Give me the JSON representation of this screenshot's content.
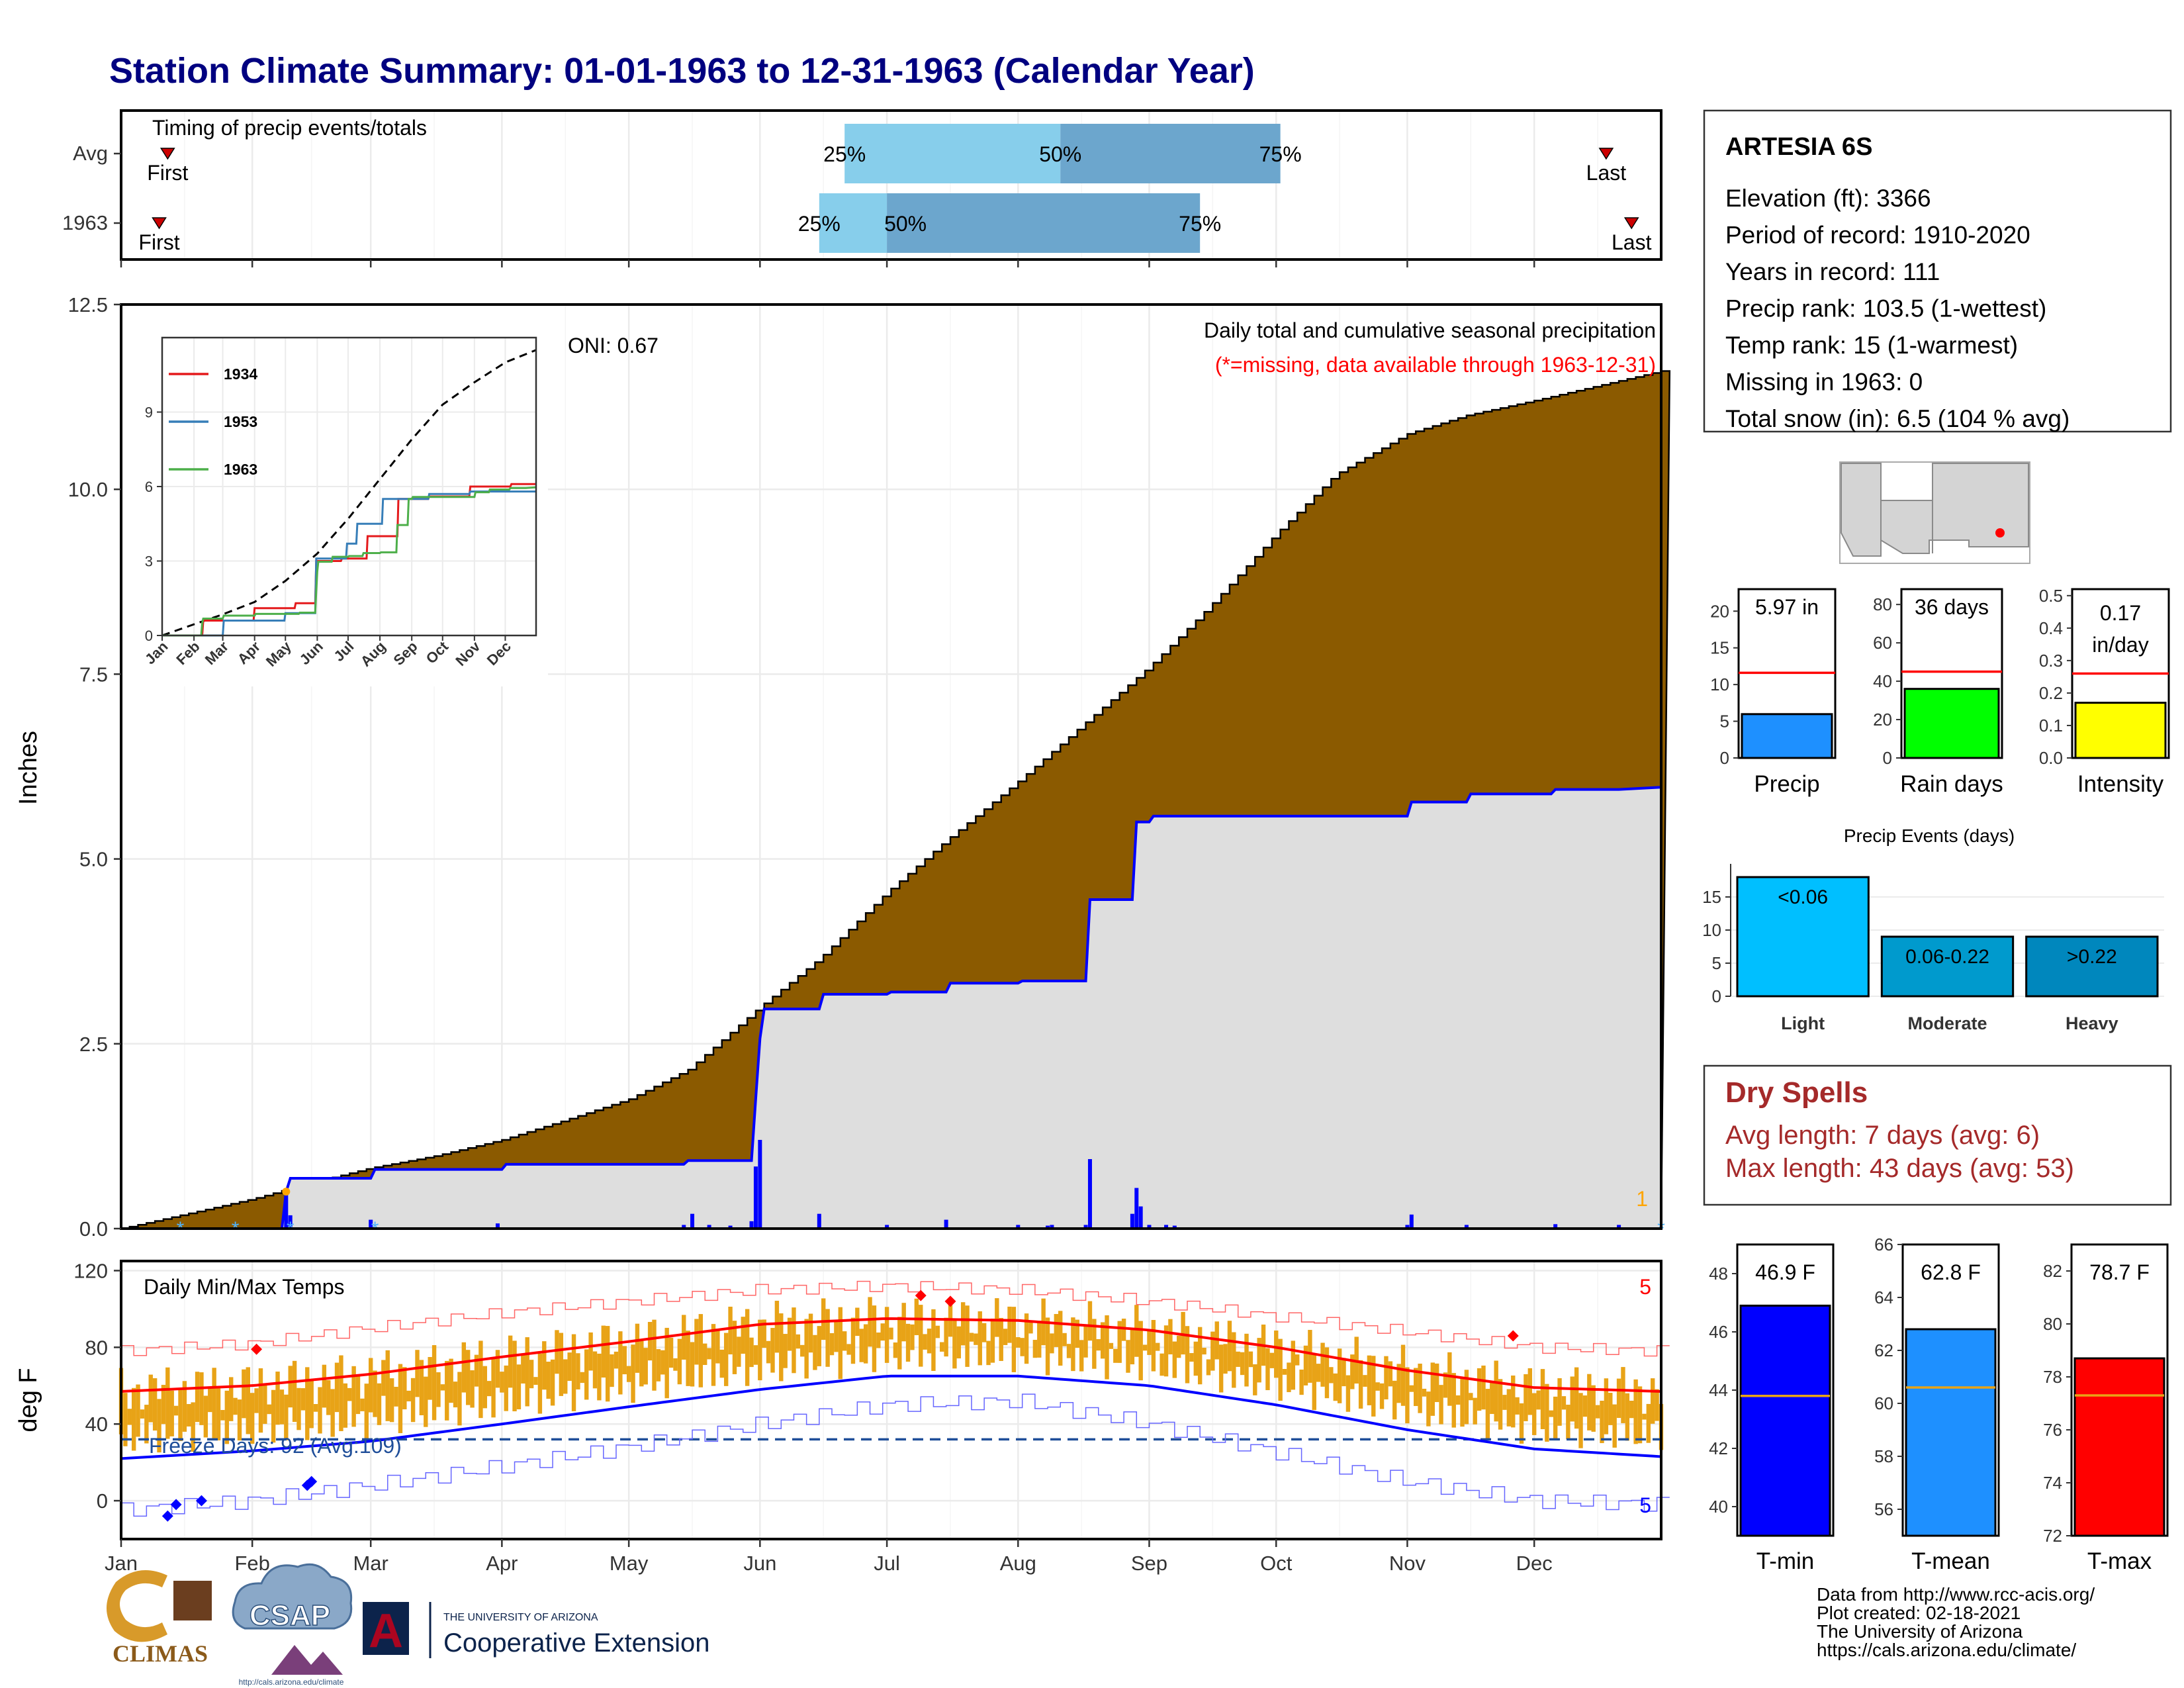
{
  "title": "Station Climate Summary: 01-01-1963 to 12-31-1963 (Calendar Year)",
  "months": [
    "Jan",
    "Feb",
    "Mar",
    "Apr",
    "May",
    "Jun",
    "Jul",
    "Aug",
    "Sep",
    "Oct",
    "Nov",
    "Dec"
  ],
  "timing": {
    "title": "Timing of precip events/totals",
    "rows": [
      {
        "label": "Avg",
        "first_day": 12,
        "p25_day": 172,
        "p50_day": 223,
        "p75_day": 275,
        "last_day": 352,
        "first_label": "First",
        "last_label": "Last",
        "p25_label": "25%",
        "p50_label": "50%",
        "p75_label": "75%"
      },
      {
        "label": "1963",
        "first_day": 10,
        "p25_day": 166,
        "p50_day": 182,
        "p75_day": 256,
        "last_day": 358,
        "first_label": "First",
        "last_label": "Last",
        "p25_label": "25%",
        "p50_label": "50%",
        "p75_label": "75%"
      }
    ]
  },
  "station": {
    "name": "ARTESIA 6S",
    "lines": [
      "Elevation (ft): 3366",
      "Period of record: 1910-2020",
      "Years in record: 111",
      "Precip rank: 103.5 (1-wettest)",
      "Temp rank: 15 (1-warmest)",
      "Missing in 1963: 0",
      "Total snow (in): 6.5 (104 % avg)"
    ]
  },
  "precip_panel": {
    "ylabel": "Inches",
    "y_ticks": [
      "0.0",
      "2.5",
      "5.0",
      "7.5",
      "10.0",
      "12.5"
    ],
    "oni": "ONI: 0.67",
    "caption": "Daily total and cumulative seasonal precipitation",
    "missing_note": "(*=missing, data available through 1963-12-31)",
    "corner_label": "1",
    "colors": {
      "avg_fill": "#8b5a00",
      "year_fill": "#dedede",
      "year_line": "#0000ff"
    }
  },
  "chart_data": [
    {
      "type": "area",
      "title": "Daily total and cumulative seasonal precipitation",
      "ylabel": "Inches",
      "ylim": [
        0,
        12.5
      ],
      "series": [
        {
          "name": "Average cumulative",
          "x": [
            1,
            15,
            32,
            46,
            60,
            75,
            91,
            105,
            121,
            135,
            152,
            166,
            182,
            196,
            213,
            227,
            244,
            258,
            274,
            288,
            305,
            319,
            335,
            350,
            365
          ],
          "y": [
            0,
            0.18,
            0.4,
            0.62,
            0.82,
            0.98,
            1.2,
            1.45,
            1.75,
            2.15,
            3.0,
            3.65,
            4.55,
            5.25,
            6.05,
            6.75,
            7.6,
            8.4,
            9.4,
            10.2,
            10.75,
            11.0,
            11.2,
            11.4,
            11.6
          ]
        },
        {
          "name": "1963 cumulative",
          "x": [
            1,
            39,
            40,
            41,
            60,
            61,
            91,
            92,
            134,
            135,
            150,
            151,
            152,
            153,
            166,
            167,
            182,
            183,
            196,
            197,
            213,
            214,
            229,
            230,
            240,
            241,
            244,
            245,
            305,
            306,
            319,
            320,
            339,
            340,
            355,
            365
          ],
          "y": [
            0,
            0,
            0.5,
            0.68,
            0.68,
            0.8,
            0.8,
            0.87,
            0.87,
            0.92,
            0.92,
            1.76,
            2.57,
            2.97,
            2.97,
            3.17,
            3.17,
            3.2,
            3.2,
            3.32,
            3.32,
            3.35,
            3.35,
            4.45,
            4.45,
            5.5,
            5.5,
            5.58,
            5.58,
            5.77,
            5.77,
            5.88,
            5.88,
            5.94,
            5.94,
            5.97
          ]
        },
        {
          "name": "1963 daily",
          "x": [
            40,
            41,
            60,
            90,
            134,
            136,
            140,
            145,
            150,
            151,
            152,
            166,
            182,
            196,
            213,
            220,
            221,
            229,
            230,
            240,
            241,
            242,
            244,
            248,
            250,
            305,
            306,
            319,
            340,
            355
          ],
          "y": [
            0.5,
            0.18,
            0.12,
            0.07,
            0.05,
            0.2,
            0.05,
            0.04,
            0.1,
            0.84,
            1.2,
            0.2,
            0.05,
            0.12,
            0.05,
            0.04,
            0.05,
            0.05,
            0.94,
            0.2,
            0.55,
            0.3,
            0.05,
            0.05,
            0.04,
            0.05,
            0.19,
            0.05,
            0.06,
            0.05
          ]
        }
      ]
    },
    {
      "type": "line",
      "legend": [
        "1934",
        "1953",
        "1963"
      ],
      "x_ticks": [
        "Jan",
        "Feb",
        "Mar",
        "Apr",
        "May",
        "Jun",
        "Jul",
        "Aug",
        "Sep",
        "Oct",
        "Nov",
        "Dec"
      ],
      "y_ticks": [
        "0",
        "3",
        "6",
        "9"
      ],
      "ylim": [
        0,
        12
      ],
      "series": [
        {
          "name": "avg",
          "style": "dashed",
          "color": "#000000",
          "x": [
            1,
            32,
            60,
            91,
            121,
            152,
            182,
            213,
            244,
            274,
            305,
            335,
            365
          ],
          "y": [
            0,
            0.45,
            0.85,
            1.35,
            2.2,
            3.3,
            4.7,
            6.3,
            7.9,
            9.3,
            10.2,
            11.0,
            11.5
          ]
        },
        {
          "name": "1934",
          "color": "#e41a1c",
          "x": [
            1,
            40,
            41,
            90,
            91,
            130,
            131,
            150,
            151,
            175,
            176,
            200,
            201,
            230,
            231,
            260,
            261,
            300,
            301,
            340,
            341,
            365
          ],
          "y": [
            0,
            0,
            0.6,
            0.6,
            1.1,
            1.1,
            1.3,
            1.3,
            3.0,
            3.0,
            3.1,
            3.1,
            4.0,
            4.0,
            5.5,
            5.5,
            5.6,
            5.6,
            6.0,
            6.0,
            6.1,
            6.1
          ]
        },
        {
          "name": "1953",
          "color": "#377eb8",
          "x": [
            1,
            60,
            61,
            120,
            121,
            150,
            151,
            180,
            181,
            190,
            191,
            215,
            216,
            260,
            261,
            300,
            301,
            365
          ],
          "y": [
            0,
            0,
            0.6,
            0.6,
            0.9,
            0.9,
            3.1,
            3.1,
            3.7,
            3.7,
            4.5,
            4.5,
            5.5,
            5.5,
            5.7,
            5.7,
            5.8,
            5.8
          ]
        },
        {
          "name": "1963",
          "color": "#4daf4a",
          "x": [
            1,
            39,
            40,
            41,
            60,
            61,
            91,
            92,
            134,
            135,
            150,
            151,
            152,
            153,
            166,
            167,
            182,
            183,
            196,
            197,
            213,
            214,
            229,
            230,
            240,
            241,
            244,
            245,
            305,
            306,
            319,
            320,
            339,
            340,
            355,
            365
          ],
          "y": [
            0,
            0,
            0.5,
            0.68,
            0.68,
            0.8,
            0.8,
            0.87,
            0.87,
            0.92,
            0.92,
            1.76,
            2.57,
            2.97,
            2.97,
            3.17,
            3.17,
            3.2,
            3.2,
            3.32,
            3.32,
            3.35,
            3.35,
            4.45,
            4.45,
            5.5,
            5.5,
            5.58,
            5.58,
            5.77,
            5.77,
            5.88,
            5.88,
            5.94,
            5.94,
            5.97
          ]
        }
      ]
    },
    {
      "type": "bar",
      "title": "",
      "categories": [
        "Precip",
        "Rain days",
        "Intensity"
      ],
      "values": [
        5.97,
        36,
        0.17
      ],
      "labels": [
        "5.97 in",
        "36 days",
        "0.17 in/day"
      ],
      "averages": [
        11.6,
        45,
        0.26
      ],
      "ylims": [
        [
          0,
          23
        ],
        [
          0,
          88
        ],
        [
          0,
          0.52
        ]
      ],
      "y_ticks": [
        [
          "0",
          "5",
          "10",
          "15",
          "20"
        ],
        [
          "0",
          "20",
          "40",
          "60",
          "80"
        ],
        [
          "0.0",
          "0.1",
          "0.2",
          "0.3",
          "0.4",
          "0.5"
        ]
      ],
      "colors": [
        "#1e90ff",
        "#00ff00",
        "#ffff00"
      ]
    },
    {
      "type": "bar",
      "title": "Precip Events (days)",
      "categories": [
        "Light",
        "Moderate",
        "Heavy"
      ],
      "values": [
        18,
        9,
        9
      ],
      "labels": [
        "<0.06",
        "0.06-0.22",
        ">0.22"
      ],
      "y_ticks": [
        "0",
        "5",
        "10",
        "15"
      ],
      "ylim": [
        0,
        20
      ],
      "colors": [
        "#00bfff",
        "#009acd",
        "#0087bd"
      ]
    },
    {
      "type": "line",
      "title": "Daily Min/Max Temps",
      "ylabel": "deg F",
      "y_ticks": [
        "0",
        "40",
        "80",
        "120"
      ],
      "ylim": [
        -20,
        125
      ],
      "freeze_line": 32,
      "series": [
        {
          "name": "avg max",
          "color": "#ff0000",
          "x": [
            1,
            32,
            60,
            91,
            121,
            152,
            182,
            213,
            244,
            274,
            305,
            335,
            365
          ],
          "y": [
            57,
            60,
            66,
            75,
            83,
            92,
            95,
            94,
            89,
            80,
            68,
            59,
            57
          ]
        },
        {
          "name": "avg min",
          "color": "#0000ff",
          "x": [
            1,
            32,
            60,
            91,
            121,
            152,
            182,
            213,
            244,
            274,
            305,
            335,
            365
          ],
          "y": [
            22,
            26,
            31,
            40,
            49,
            58,
            65,
            65,
            60,
            50,
            37,
            27,
            23
          ]
        },
        {
          "name": "record max",
          "color": "#ff6666",
          "x": [
            1,
            32,
            60,
            91,
            121,
            152,
            182,
            213,
            244,
            274,
            305,
            335,
            365
          ],
          "y": [
            78,
            82,
            90,
            98,
            104,
            110,
            112,
            110,
            104,
            96,
            88,
            80,
            78
          ]
        },
        {
          "name": "record min",
          "color": "#6666ff",
          "x": [
            1,
            32,
            60,
            91,
            121,
            152,
            182,
            213,
            244,
            274,
            305,
            335,
            365
          ],
          "y": [
            -5,
            0,
            8,
            18,
            28,
            40,
            50,
            52,
            40,
            25,
            10,
            0,
            -2
          ]
        }
      ]
    },
    {
      "type": "bar",
      "categories": [
        "T-min",
        "T-mean",
        "T-max"
      ],
      "values": [
        46.9,
        62.8,
        78.7
      ],
      "labels": [
        "46.9 F",
        "62.8 F",
        "78.7 F"
      ],
      "averages": [
        43.8,
        60.6,
        77.3
      ],
      "ylims": [
        [
          39,
          49
        ],
        [
          55,
          66
        ],
        [
          72,
          83
        ]
      ],
      "y_ticks": [
        [
          "40",
          "42",
          "44",
          "46",
          "48"
        ],
        [
          "56",
          "58",
          "60",
          "62",
          "64",
          "66"
        ],
        [
          "72",
          "74",
          "76",
          "78",
          "80",
          "82"
        ]
      ],
      "colors": [
        "#0000ff",
        "#1e90ff",
        "#ff0000"
      ]
    }
  ],
  "temp_panel": {
    "caption": "Daily Min/Max Temps",
    "ylabel": "deg F",
    "freeze_text": "Freeze Days: 92 (Avg:109)",
    "corner_top": "5",
    "corner_bottom": "5"
  },
  "dry_spells": {
    "title": "Dry Spells",
    "avg": "Avg length: 7 days (avg: 6)",
    "max": "Max length: 43 days (avg: 53)"
  },
  "footer": {
    "lines": [
      "Data from http://www.rcc-acis.org/",
      "Plot created: 02-18-2021",
      "The University of Arizona",
      "https://cals.arizona.edu/climate/"
    ],
    "climas": "CLIMAS",
    "csap": "CSAP",
    "csap_url": "http://cals.arizona.edu/climate",
    "ua_line1": "THE UNIVERSITY OF ARIZONA",
    "ua_line2": "Cooperative Extension",
    "ua_letter": "A"
  }
}
